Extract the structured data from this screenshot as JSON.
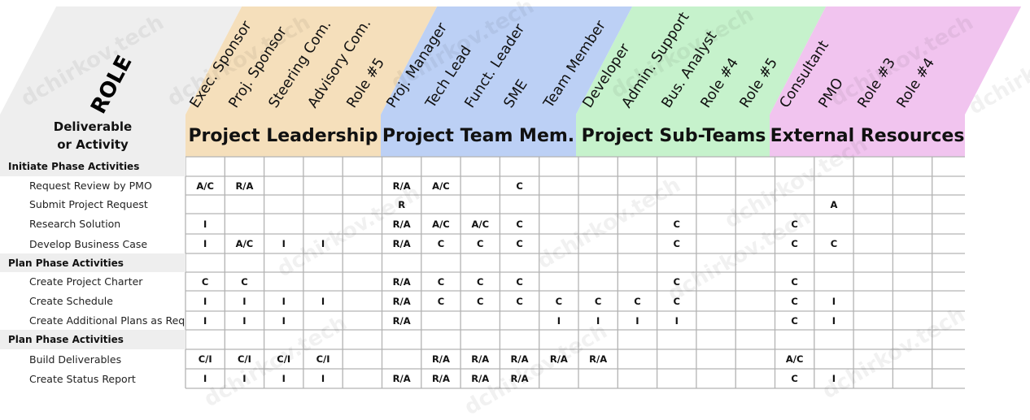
{
  "role_label": "ROLE",
  "deliverable_header": {
    "line1": "Deliverable",
    "line2": "or Activity"
  },
  "groups": [
    {
      "title": "Project Leadership",
      "color": "#f5dfbb"
    },
    {
      "title": "Project Team Mem.",
      "color": "#bcd0f5"
    },
    {
      "title": "Project Sub-Teams",
      "color": "#c6f2cc"
    },
    {
      "title": "External Resources",
      "color": "#f1c4ef"
    }
  ],
  "columns": [
    "Exec. Sponsor",
    "Proj. Sponsor",
    "Steering Com.",
    "Advisory Com.",
    "Role #5",
    "Proj. Manager",
    "Tech Lead",
    "Funct. Leader",
    "SME",
    "Team Member",
    "Developer",
    "Admin. Support",
    "Bus. Analyst",
    "Role #4",
    "Role #5",
    "Consultant",
    "PMO",
    "Role #3",
    "Role #4"
  ],
  "rows": [
    {
      "type": "section",
      "label": "Initiate Phase Activities",
      "cells": [
        "",
        "",
        "",
        "",
        "",
        "",
        "",
        "",
        "",
        "",
        "",
        "",
        "",
        "",
        "",
        "",
        "",
        "",
        ""
      ]
    },
    {
      "type": "activity",
      "label": "Request Review by PMO",
      "cells": [
        "A/C",
        "R/A",
        "",
        "",
        "",
        "R/A",
        "A/C",
        "",
        "C",
        "",
        "",
        "",
        "",
        "",
        "",
        "",
        "",
        "",
        ""
      ]
    },
    {
      "type": "activity",
      "label": "Submit Project Request",
      "cells": [
        "",
        "",
        "",
        "",
        "",
        "R",
        "",
        "",
        "",
        "",
        "",
        "",
        "",
        "",
        "",
        "",
        "A",
        "",
        ""
      ]
    },
    {
      "type": "activity",
      "label": "Research Solution",
      "cells": [
        "I",
        "",
        "",
        "",
        "",
        "R/A",
        "A/C",
        "A/C",
        "C",
        "",
        "",
        "",
        "C",
        "",
        "",
        "C",
        "",
        "",
        ""
      ]
    },
    {
      "type": "activity",
      "label": "Develop Business Case",
      "cells": [
        "I",
        "A/C",
        "I",
        "I",
        "",
        "R/A",
        "C",
        "C",
        "C",
        "",
        "",
        "",
        "C",
        "",
        "",
        "C",
        "C",
        "",
        ""
      ]
    },
    {
      "type": "section",
      "label": "Plan Phase Activities",
      "cells": [
        "",
        "",
        "",
        "",
        "",
        "",
        "",
        "",
        "",
        "",
        "",
        "",
        "",
        "",
        "",
        "",
        "",
        "",
        ""
      ]
    },
    {
      "type": "activity",
      "label": "Create Project Charter",
      "cells": [
        "C",
        "C",
        "",
        "",
        "",
        "R/A",
        "C",
        "C",
        "C",
        "",
        "",
        "",
        "C",
        "",
        "",
        "C",
        "",
        "",
        ""
      ]
    },
    {
      "type": "activity",
      "label": "Create Schedule",
      "cells": [
        "I",
        "I",
        "I",
        "I",
        "",
        "R/A",
        "C",
        "C",
        "C",
        "C",
        "C",
        "C",
        "C",
        "",
        "",
        "C",
        "I",
        "",
        ""
      ]
    },
    {
      "type": "activity",
      "label": "Create Additional Plans as Req",
      "cells": [
        "I",
        "I",
        "I",
        "",
        "",
        "R/A",
        "",
        "",
        "",
        "I",
        "I",
        "I",
        "I",
        "",
        "",
        "C",
        "I",
        "",
        ""
      ]
    },
    {
      "type": "section",
      "label": "Plan Phase Activities",
      "cells": [
        "",
        "",
        "",
        "",
        "",
        "",
        "",
        "",
        "",
        "",
        "",
        "",
        "",
        "",
        "",
        "",
        "",
        "",
        ""
      ]
    },
    {
      "type": "activity",
      "label": "Build Deliverables",
      "cells": [
        "C/I",
        "C/I",
        "C/I",
        "C/I",
        "",
        "",
        "R/A",
        "R/A",
        "R/A",
        "R/A",
        "R/A",
        "",
        "",
        "",
        "",
        "A/C",
        "",
        "",
        ""
      ]
    },
    {
      "type": "activity",
      "label": "Create Status Report",
      "cells": [
        "I",
        "I",
        "I",
        "I",
        "",
        "R/A",
        "R/A",
        "R/A",
        "R/A",
        "",
        "",
        "",
        "",
        "",
        "",
        "C",
        "I",
        "",
        ""
      ]
    }
  ],
  "watermark_text": "dchirkov.tech",
  "colors": {
    "grid": "#b3b3b3",
    "header_gray": "#eeeeee"
  }
}
